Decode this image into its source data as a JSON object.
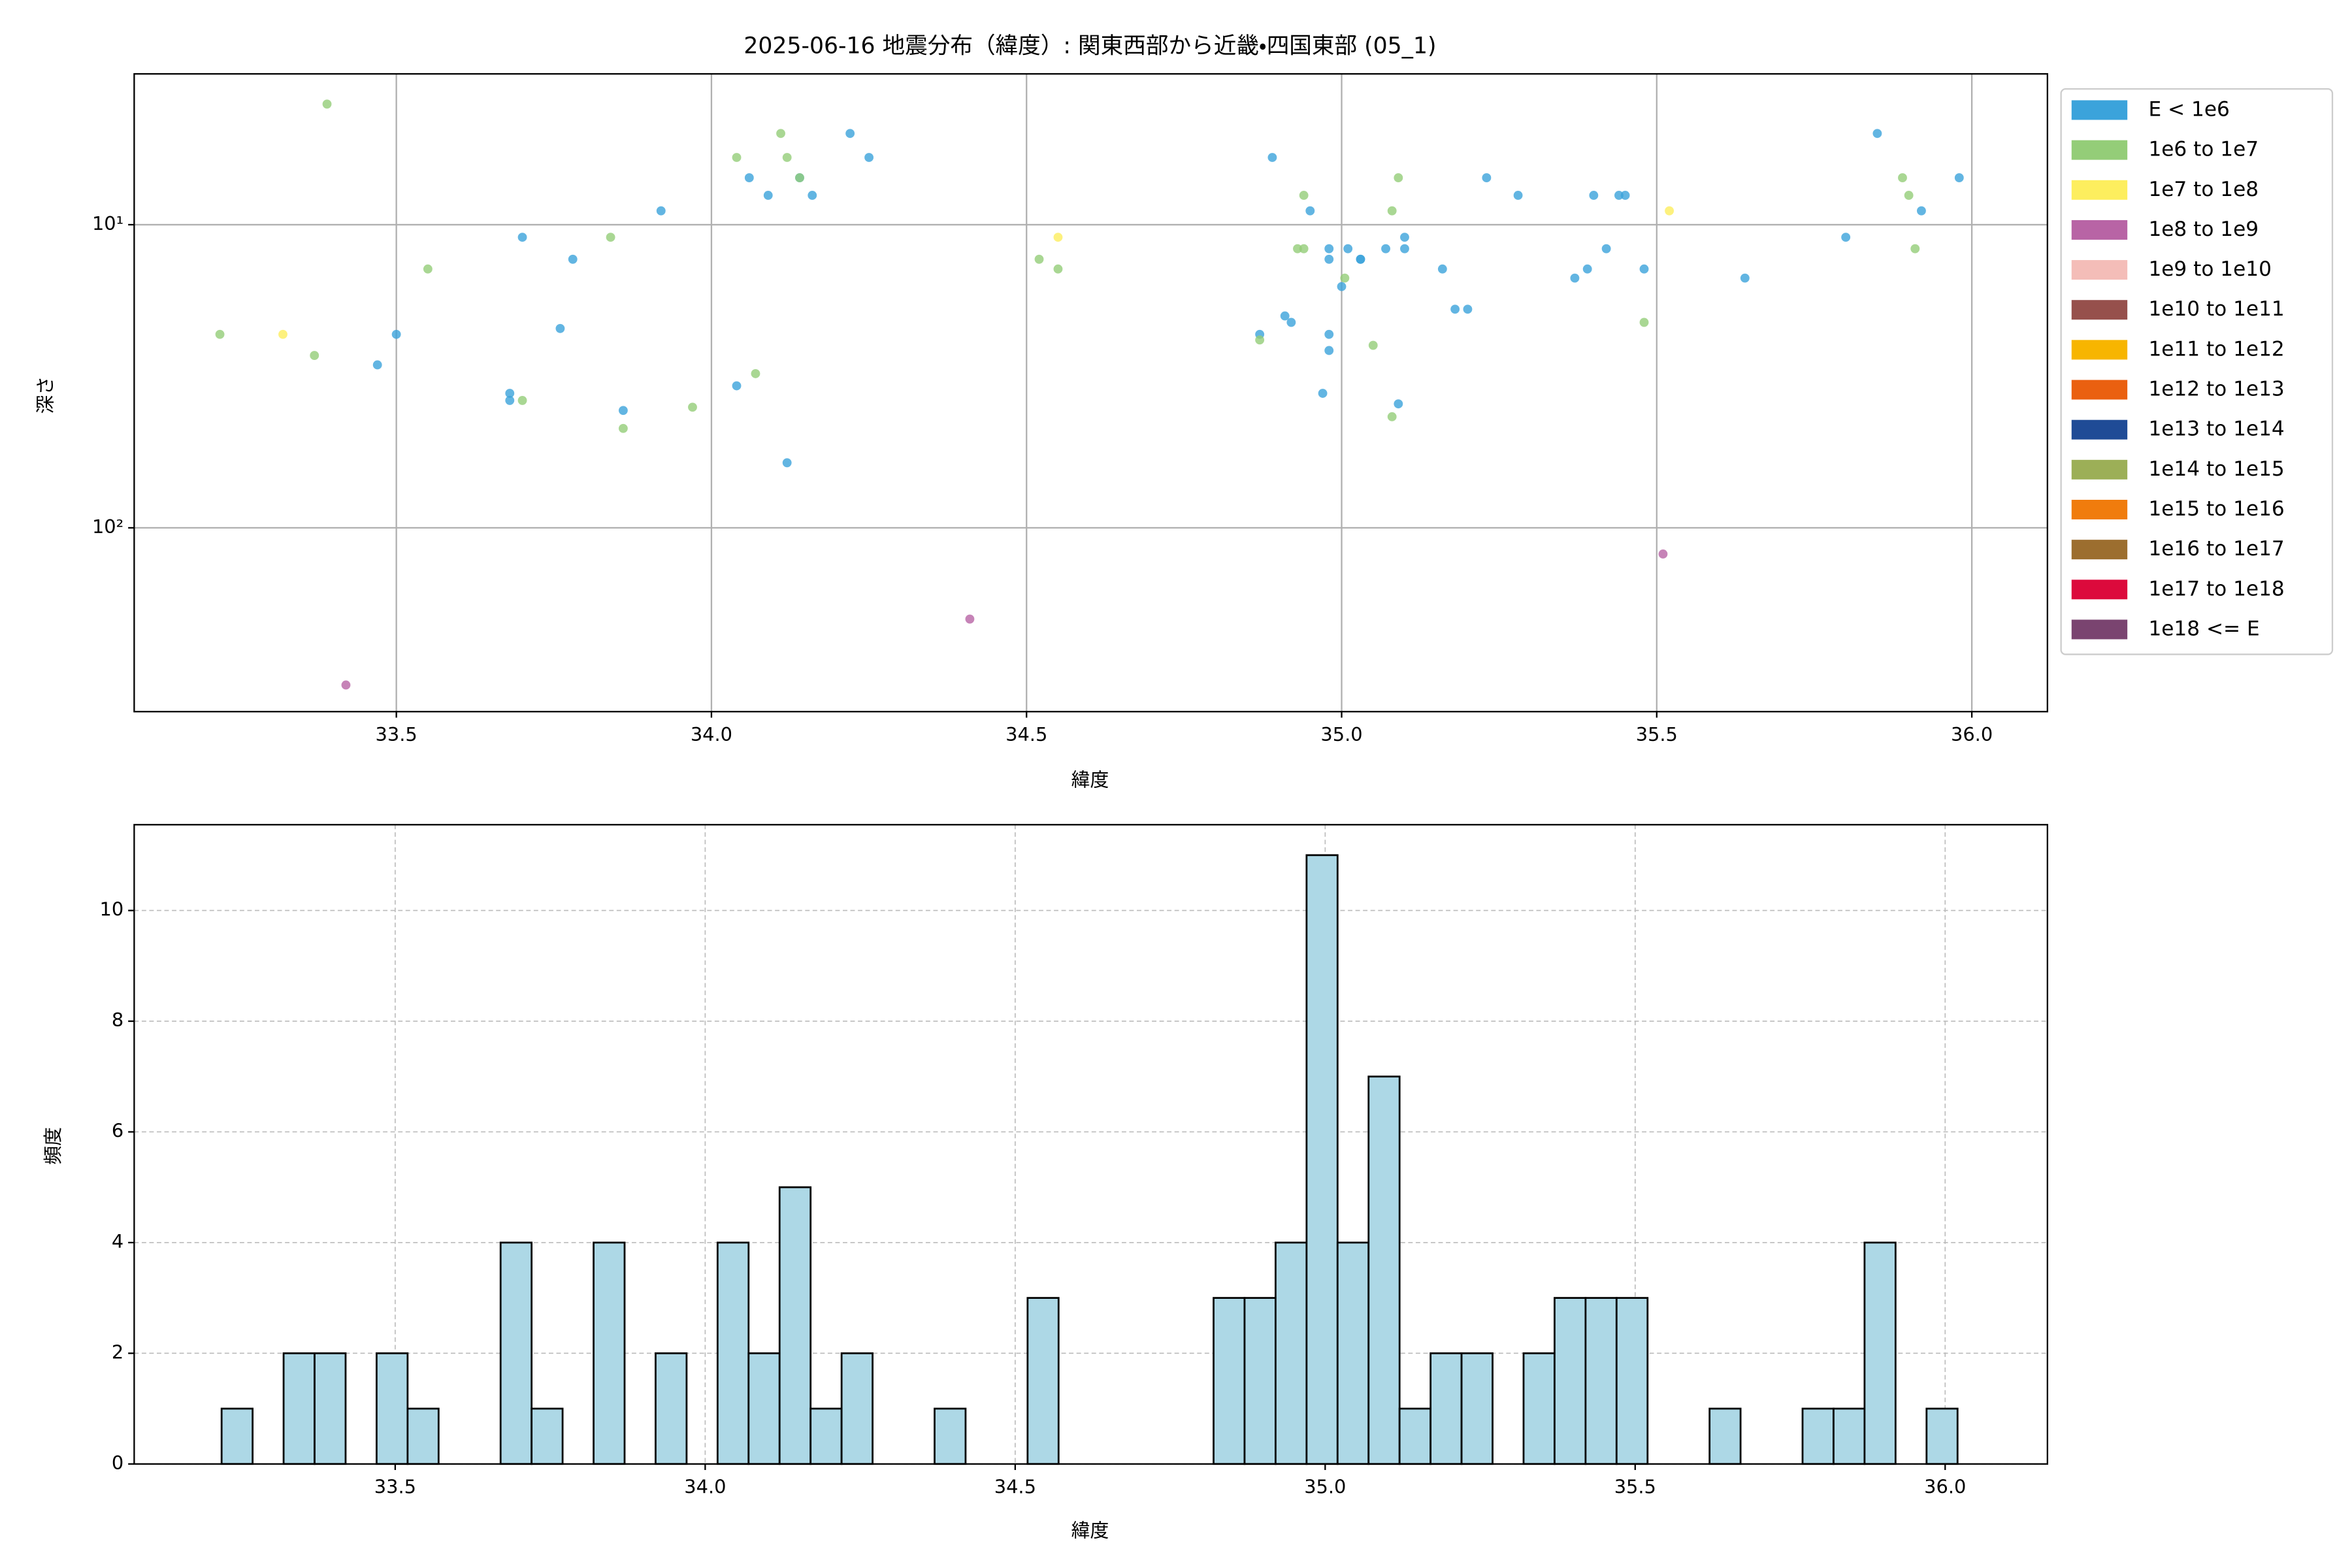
{
  "chart_data": [
    {
      "type": "scatter",
      "title": "2025-06-16 地震分布（緯度）: 関東西部から近畿・四国東部 (05_1)",
      "xlabel": "緯度",
      "ylabel": "深さ",
      "xlim": [
        33.084,
        36.12
      ],
      "xticks": [
        33.5,
        {
          "value": 34,
          "label": "34.0"
        },
        34.5,
        {
          "value": 35,
          "label": "35.0"
        },
        35.5,
        {
          "value": 36,
          "label": "36.0"
        }
      ],
      "ylim": [
        3.18,
        404
      ],
      "ylog": true,
      "yinverted": true,
      "yticks": [
        {
          "value": 10,
          "label": "10¹"
        },
        {
          "value": 100,
          "label": "10²"
        }
      ],
      "grid": "solid",
      "legend": "outside right",
      "series": [
        {
          "name": "E < 1e6",
          "color": "#3ba3db",
          "x": [
            33.47,
            33.5,
            33.68,
            33.68,
            33.7,
            33.76,
            33.78,
            33.86,
            33.92,
            34.04,
            34.06,
            34.09,
            34.12,
            34.14,
            34.16,
            34.22,
            34.25,
            34.89,
            34.87,
            34.91,
            34.92,
            34.95,
            34.98,
            34.98,
            34.98,
            34.98,
            34.97,
            35.0,
            35.01,
            35.03,
            35.03,
            35.07,
            35.1,
            35.1,
            35.09,
            35.16,
            35.18,
            35.2,
            35.23,
            35.28,
            35.37,
            35.39,
            35.4,
            35.42,
            35.44,
            35.45,
            35.48,
            35.64,
            35.8,
            35.85,
            35.92,
            35.98
          ],
          "values": [
            29,
            23,
            36,
            38,
            11,
            22,
            13,
            41,
            9,
            34,
            7,
            8,
            61,
            7,
            8,
            5,
            6,
            6,
            23,
            20,
            21,
            9,
            12,
            13,
            23,
            26,
            36,
            16,
            12,
            13,
            13,
            12,
            11,
            12,
            39,
            14,
            19,
            19,
            7,
            8,
            15,
            14,
            8,
            12,
            8,
            8,
            14,
            15,
            11,
            5,
            9,
            7
          ]
        },
        {
          "name": "1e6 to 1e7",
          "color": "#94cd78",
          "x": [
            33.22,
            33.39,
            33.37,
            33.55,
            33.7,
            33.84,
            33.86,
            33.97,
            34.04,
            34.07,
            34.11,
            34.12,
            34.14,
            34.52,
            34.55,
            34.87,
            34.93,
            34.94,
            34.94,
            35.005,
            35.05,
            35.08,
            35.09,
            35.08,
            35.48,
            35.89,
            35.9,
            35.91
          ],
          "values": [
            23,
            4,
            27,
            14,
            38,
            11,
            47,
            40,
            6,
            31,
            5,
            6,
            7,
            13,
            14,
            24,
            12,
            12,
            8,
            15,
            25,
            9,
            7,
            43,
            21,
            7,
            8,
            12
          ]
        },
        {
          "name": "1e7 to 1e8",
          "color": "#fdee5e",
          "x": [
            33.32,
            34.55,
            35.52
          ],
          "values": [
            23,
            11,
            9
          ]
        },
        {
          "name": "1e8 to 1e9",
          "color": "#b864a5",
          "x": [
            33.42,
            34.41,
            35.51
          ],
          "values": [
            330,
            200,
            122
          ]
        },
        {
          "name": "1e9 to 1e10",
          "color": "#f4bdb8",
          "x": [],
          "values": []
        },
        {
          "name": "1e10 to 1e11",
          "color": "#96504c",
          "x": [],
          "values": []
        },
        {
          "name": "1e11 to 1e12",
          "color": "#f7b500",
          "x": [],
          "values": []
        },
        {
          "name": "1e12 to 1e13",
          "color": "#ea6010",
          "x": [],
          "values": []
        },
        {
          "name": "1e13 to 1e14",
          "color": "#1f4b96",
          "x": [],
          "values": []
        },
        {
          "name": "1e14 to 1e15",
          "color": "#9caf57",
          "x": [],
          "values": []
        },
        {
          "name": "1e15 to 1e16",
          "color": "#f07c0d",
          "x": [],
          "values": []
        },
        {
          "name": "1e16 to 1e17",
          "color": "#9c6e2f",
          "x": [],
          "values": []
        },
        {
          "name": "1e17 to 1e18",
          "color": "#dc0a3c",
          "x": [],
          "values": []
        },
        {
          "name": "1e18 <= E",
          "color": "#7a4470",
          "x": [],
          "values": []
        }
      ]
    },
    {
      "type": "histogram",
      "xlabel": "緯度",
      "ylabel": "頻度",
      "xlim": [
        33.079,
        36.165
      ],
      "xticks": [
        33.5,
        {
          "value": 34,
          "label": "34.0"
        },
        34.5,
        {
          "value": 35,
          "label": "35.0"
        },
        35.5,
        {
          "value": 36,
          "label": "36.0"
        }
      ],
      "ylim": [
        0,
        11.55
      ],
      "yticks": [
        0,
        2,
        4,
        6,
        8,
        10
      ],
      "grid": "dashed",
      "color": "#add8e6",
      "edgecolor": "#000000",
      "bins": [
        33.22,
        33.27,
        33.32,
        33.37,
        33.42,
        33.47,
        33.52,
        33.57,
        33.62,
        33.67,
        33.72,
        33.77,
        33.82,
        33.87,
        33.92,
        33.97,
        34.02,
        34.07,
        34.12,
        34.17,
        34.22,
        34.27,
        34.32,
        34.37,
        34.42,
        34.47,
        34.52,
        34.57,
        34.62,
        34.67,
        34.72,
        34.77,
        34.82,
        34.87,
        34.92,
        34.97,
        35.02,
        35.07,
        35.12,
        35.17,
        35.22,
        35.27,
        35.32,
        35.37,
        35.42,
        35.47,
        35.52,
        35.57,
        35.62,
        35.67,
        35.72,
        35.77,
        35.82,
        35.87,
        35.92,
        35.97,
        36.02
      ],
      "values": [
        1,
        0,
        2,
        2,
        0,
        2,
        1,
        0,
        0,
        4,
        1,
        0,
        4,
        0,
        2,
        0,
        4,
        2,
        5,
        1,
        2,
        0,
        0,
        1,
        0,
        0,
        3,
        0,
        0,
        0,
        0,
        0,
        3,
        3,
        4,
        11,
        4,
        7,
        1,
        2,
        2,
        0,
        2,
        3,
        3,
        3,
        0,
        0,
        1,
        0,
        0,
        1,
        1,
        4,
        0,
        1
      ]
    }
  ]
}
